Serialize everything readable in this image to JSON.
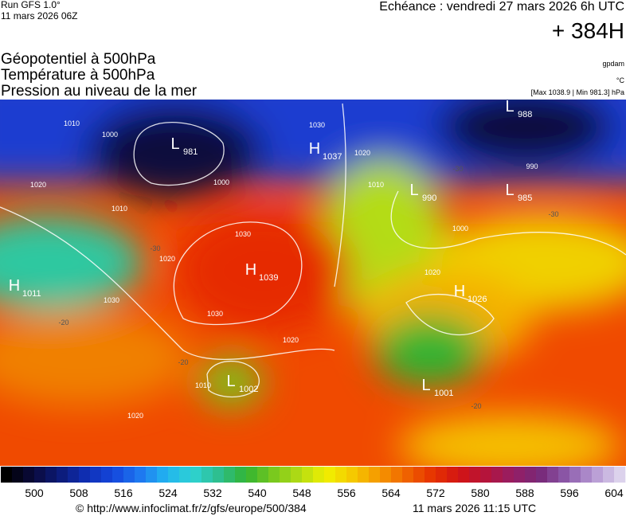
{
  "header": {
    "run": "Run GFS 1.0°",
    "run_date": "11 mars 2026 06Z",
    "valid": "Echéance : vendredi 27 mars 2026 6h UTC",
    "lead": "+ 384H",
    "fields": [
      "Géopotentiel à 500hPa",
      "Température à 500hPa",
      "Pression au niveau de la mer"
    ],
    "units": [
      "gpdam",
      "°C",
      "[Max 1038.9 | Min 981.3] hPa"
    ]
  },
  "map": {
    "centers": [
      {
        "type": "L",
        "value": 981
      },
      {
        "type": "H",
        "value": 1037
      },
      {
        "type": "L",
        "value": 988
      },
      {
        "type": "L",
        "value": 990
      },
      {
        "type": "L",
        "value": 985
      },
      {
        "type": "H",
        "value": 1039
      },
      {
        "type": "H",
        "value": 1011
      },
      {
        "type": "H",
        "value": 1026
      },
      {
        "type": "L",
        "value": 1002
      },
      {
        "type": "L",
        "value": 1001
      }
    ],
    "isobar_labels": [
      1010,
      1000,
      1020,
      1010,
      1020,
      1030,
      1030,
      1030,
      1020,
      1010,
      1020,
      1000,
      1030,
      1020,
      1010,
      1000,
      990,
      1020
    ],
    "temperature_labels": [
      -20,
      -20,
      -30,
      -30,
      -20,
      -30
    ]
  },
  "colorbar": {
    "labels": [
      500,
      508,
      516,
      524,
      532,
      540,
      548,
      556,
      564,
      572,
      580,
      588,
      596,
      604
    ],
    "colors": [
      "#000000",
      "#0a0a3c",
      "#0c1a78",
      "#0f2fb4",
      "#1446dc",
      "#1e78f0",
      "#22b4f0",
      "#2ed2d2",
      "#2ebe8c",
      "#32b432",
      "#78c81e",
      "#b4dc14",
      "#f0f000",
      "#f5c800",
      "#f59600",
      "#f06400",
      "#e63200",
      "#d21414",
      "#b4143c",
      "#961e64",
      "#782878",
      "#8c5aaa",
      "#b496d2",
      "#dcd2ec"
    ]
  },
  "footer": {
    "source": "© http://www.infoclimat.fr/z/gfs/europe/500/384",
    "generated": "11 mars 2026 11:15 UTC"
  }
}
